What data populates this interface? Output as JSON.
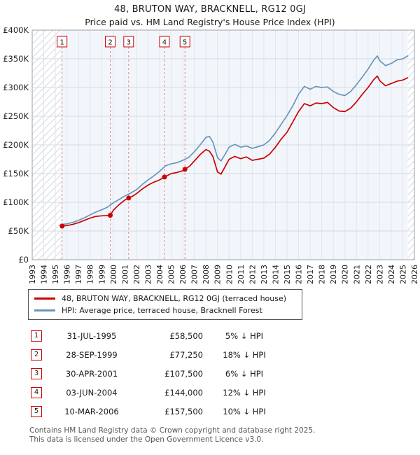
{
  "page": {
    "title": "48, BRUTON WAY, BRACKNELL, RG12 0GJ",
    "subtitle": "Price paid vs. HM Land Registry's House Price Index (HPI)"
  },
  "chart_data": {
    "type": "line",
    "x_min": 1993,
    "x_max": 2026,
    "y_min": 0,
    "y_max": 400000,
    "y_tick_step": 50000,
    "y_tick_labels": [
      "£0",
      "£50K",
      "£100K",
      "£150K",
      "£200K",
      "£250K",
      "£300K",
      "£350K",
      "£400K"
    ],
    "x_ticks": [
      1993,
      1994,
      1995,
      1996,
      1997,
      1998,
      1999,
      2000,
      2001,
      2002,
      2003,
      2004,
      2005,
      2006,
      2007,
      2008,
      2009,
      2010,
      2011,
      2012,
      2013,
      2014,
      2015,
      2016,
      2017,
      2018,
      2019,
      2020,
      2021,
      2022,
      2023,
      2024,
      2025,
      2026
    ],
    "grid": true,
    "legend_position": "bottom",
    "data_start": 1995.45,
    "data_end": 2025.42,
    "colors": {
      "price_paid": "#cc0000",
      "hpi": "#6c95bb",
      "sale_line": "#e08a8a",
      "grid": "#d4dbe4",
      "tint": "#f2f6fb"
    },
    "series": [
      {
        "name": "48, BRUTON WAY, BRACKNELL, RG12 0GJ (terraced house)",
        "color": "#cc0000",
        "width": 1.7,
        "points": [
          [
            1995.58,
            58500
          ],
          [
            1996,
            59500
          ],
          [
            1996.5,
            61500
          ],
          [
            1997,
            64500
          ],
          [
            1997.5,
            68500
          ],
          [
            1998,
            72500
          ],
          [
            1998.5,
            75500
          ],
          [
            1999,
            76500
          ],
          [
            1999.74,
            77250
          ],
          [
            2000,
            86000
          ],
          [
            2000.5,
            96000
          ],
          [
            2001,
            104000
          ],
          [
            2001.33,
            107500
          ],
          [
            2001.7,
            111000
          ],
          [
            2002,
            115000
          ],
          [
            2002.5,
            123000
          ],
          [
            2003,
            130000
          ],
          [
            2003.5,
            135000
          ],
          [
            2004,
            139000
          ],
          [
            2004.42,
            144000
          ],
          [
            2004.7,
            147000
          ],
          [
            2005,
            150000
          ],
          [
            2005.5,
            152000
          ],
          [
            2006,
            155000
          ],
          [
            2006.19,
            157500
          ],
          [
            2006.6,
            163000
          ],
          [
            2007,
            172000
          ],
          [
            2007.5,
            183000
          ],
          [
            2008,
            192000
          ],
          [
            2008.3,
            189000
          ],
          [
            2008.6,
            180000
          ],
          [
            2009,
            153000
          ],
          [
            2009.3,
            149000
          ],
          [
            2009.6,
            160000
          ],
          [
            2010,
            175000
          ],
          [
            2010.5,
            180000
          ],
          [
            2011,
            176000
          ],
          [
            2011.5,
            179000
          ],
          [
            2012,
            173000
          ],
          [
            2012.5,
            175000
          ],
          [
            2013,
            177000
          ],
          [
            2013.5,
            184000
          ],
          [
            2014,
            196000
          ],
          [
            2014.5,
            210000
          ],
          [
            2015,
            222000
          ],
          [
            2015.5,
            240000
          ],
          [
            2016,
            258000
          ],
          [
            2016.5,
            272000
          ],
          [
            2017,
            268000
          ],
          [
            2017.5,
            273000
          ],
          [
            2018,
            272000
          ],
          [
            2018.5,
            274000
          ],
          [
            2019,
            265000
          ],
          [
            2019.5,
            259000
          ],
          [
            2020,
            258000
          ],
          [
            2020.5,
            264000
          ],
          [
            2021,
            275000
          ],
          [
            2021.5,
            288000
          ],
          [
            2022,
            300000
          ],
          [
            2022.5,
            314000
          ],
          [
            2022.8,
            320000
          ],
          [
            2023,
            312000
          ],
          [
            2023.5,
            303000
          ],
          [
            2024,
            307000
          ],
          [
            2024.5,
            311000
          ],
          [
            2025,
            313000
          ],
          [
            2025.42,
            317000
          ]
        ]
      },
      {
        "name": "HPI: Average price, terraced house, Bracknell Forest",
        "color": "#6c95bb",
        "width": 1.7,
        "points": [
          [
            1995.5,
            61500
          ],
          [
            1996,
            62500
          ],
          [
            1996.5,
            65000
          ],
          [
            1997,
            68500
          ],
          [
            1997.5,
            73000
          ],
          [
            1998,
            78000
          ],
          [
            1998.5,
            83000
          ],
          [
            1999,
            87000
          ],
          [
            1999.5,
            91500
          ],
          [
            2000,
            99000
          ],
          [
            2000.5,
            105000
          ],
          [
            2001,
            111000
          ],
          [
            2001.5,
            116000
          ],
          [
            2002,
            122000
          ],
          [
            2002.5,
            131000
          ],
          [
            2003,
            139000
          ],
          [
            2003.5,
            146000
          ],
          [
            2004,
            154000
          ],
          [
            2004.5,
            163500
          ],
          [
            2005,
            167000
          ],
          [
            2005.5,
            169000
          ],
          [
            2006,
            173000
          ],
          [
            2006.5,
            178000
          ],
          [
            2007,
            188000
          ],
          [
            2007.5,
            200000
          ],
          [
            2008,
            213000
          ],
          [
            2008.3,
            215000
          ],
          [
            2008.6,
            205000
          ],
          [
            2009,
            178000
          ],
          [
            2009.3,
            172000
          ],
          [
            2009.6,
            182000
          ],
          [
            2010,
            196000
          ],
          [
            2010.5,
            201000
          ],
          [
            2011,
            196000
          ],
          [
            2011.5,
            198000
          ],
          [
            2012,
            194000
          ],
          [
            2012.5,
            197000
          ],
          [
            2013,
            200000
          ],
          [
            2013.5,
            208000
          ],
          [
            2014,
            221000
          ],
          [
            2014.5,
            236000
          ],
          [
            2015,
            251000
          ],
          [
            2015.5,
            268000
          ],
          [
            2016,
            288000
          ],
          [
            2016.5,
            302000
          ],
          [
            2017,
            297000
          ],
          [
            2017.5,
            302000
          ],
          [
            2018,
            300000
          ],
          [
            2018.5,
            301000
          ],
          [
            2019,
            293000
          ],
          [
            2019.5,
            288000
          ],
          [
            2020,
            286000
          ],
          [
            2020.5,
            293000
          ],
          [
            2021,
            305000
          ],
          [
            2021.5,
            318000
          ],
          [
            2022,
            332000
          ],
          [
            2022.5,
            348000
          ],
          [
            2022.8,
            355000
          ],
          [
            2023,
            347000
          ],
          [
            2023.5,
            338000
          ],
          [
            2024,
            342000
          ],
          [
            2024.5,
            348000
          ],
          [
            2025,
            350000
          ],
          [
            2025.42,
            355000
          ]
        ]
      }
    ],
    "sales": [
      {
        "label": "1",
        "x": 1995.58,
        "price": 58500
      },
      {
        "label": "2",
        "x": 1999.74,
        "price": 77250
      },
      {
        "label": "3",
        "x": 2001.33,
        "price": 107500
      },
      {
        "label": "4",
        "x": 2004.42,
        "price": 144000
      },
      {
        "label": "5",
        "x": 2006.19,
        "price": 157500
      }
    ]
  },
  "legend": {
    "items": [
      {
        "label": "48, BRUTON WAY, BRACKNELL, RG12 0GJ (terraced house)",
        "color": "#cc0000"
      },
      {
        "label": "HPI: Average price, terraced house, Bracknell Forest",
        "color": "#6c95bb"
      }
    ]
  },
  "table": {
    "rows": [
      {
        "num": "1",
        "date": "31-JUL-1995",
        "price": "£58,500",
        "delta": "5% ↓ HPI"
      },
      {
        "num": "2",
        "date": "28-SEP-1999",
        "price": "£77,250",
        "delta": "18% ↓ HPI"
      },
      {
        "num": "3",
        "date": "30-APR-2001",
        "price": "£107,500",
        "delta": "6% ↓ HPI"
      },
      {
        "num": "4",
        "date": "03-JUN-2004",
        "price": "£144,000",
        "delta": "12% ↓ HPI"
      },
      {
        "num": "5",
        "date": "10-MAR-2006",
        "price": "£157,500",
        "delta": "10% ↓ HPI"
      }
    ]
  },
  "footer": {
    "line1": "Contains HM Land Registry data © Crown copyright and database right 2025.",
    "line2": "This data is licensed under the Open Government Licence v3.0."
  }
}
